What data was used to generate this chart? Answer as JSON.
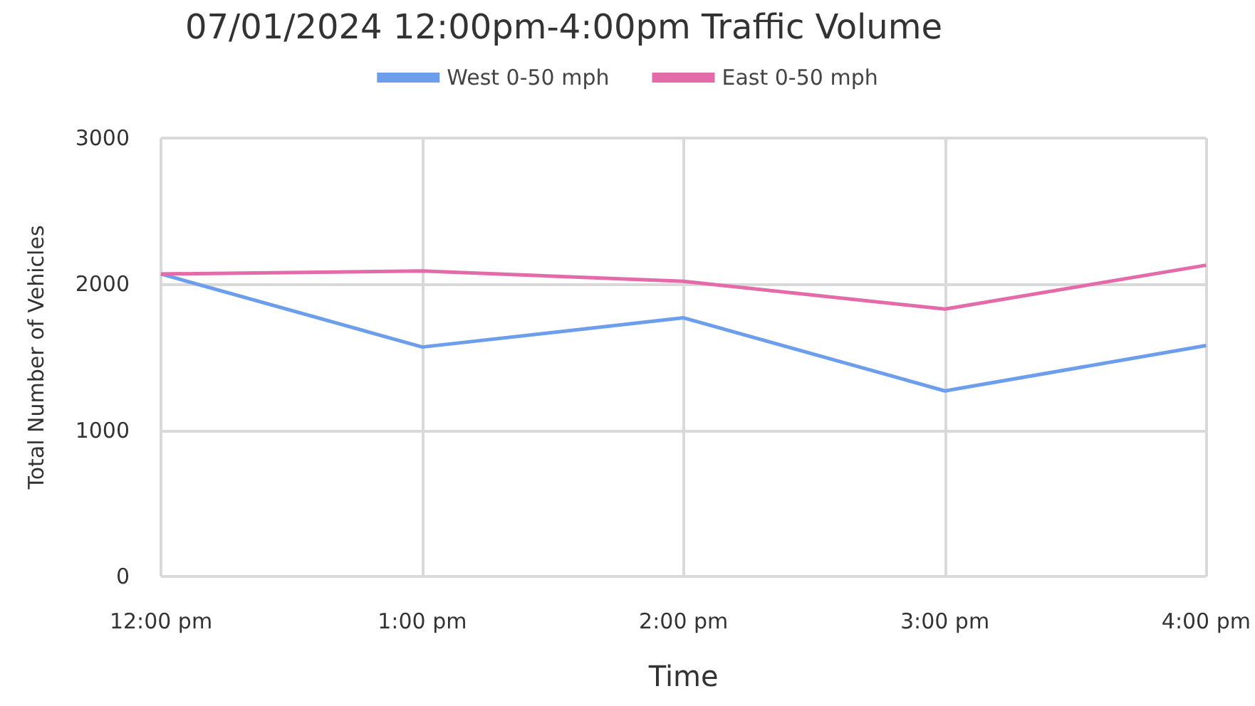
{
  "chart_data": {
    "type": "line",
    "title": "07/01/2024 12:00pm-4:00pm Traffic Volume",
    "xlabel": "Time",
    "ylabel": "Total Number of Vehicles",
    "categories": [
      "12:00 pm",
      "1:00 pm",
      "2:00 pm",
      "3:00 pm",
      "4:00 pm"
    ],
    "series": [
      {
        "name": "West 0-50 mph",
        "color": "#6d9eeb",
        "values": [
          2070,
          1570,
          1770,
          1270,
          1580
        ]
      },
      {
        "name": "East 0-50 mph",
        "color": "#e36ba9",
        "values": [
          2070,
          2090,
          2020,
          1830,
          2130
        ]
      }
    ],
    "ylim": [
      0,
      3000
    ],
    "yticks": [
      0,
      1000,
      2000,
      3000
    ],
    "grid": true,
    "legend": "top",
    "marker": "none"
  }
}
